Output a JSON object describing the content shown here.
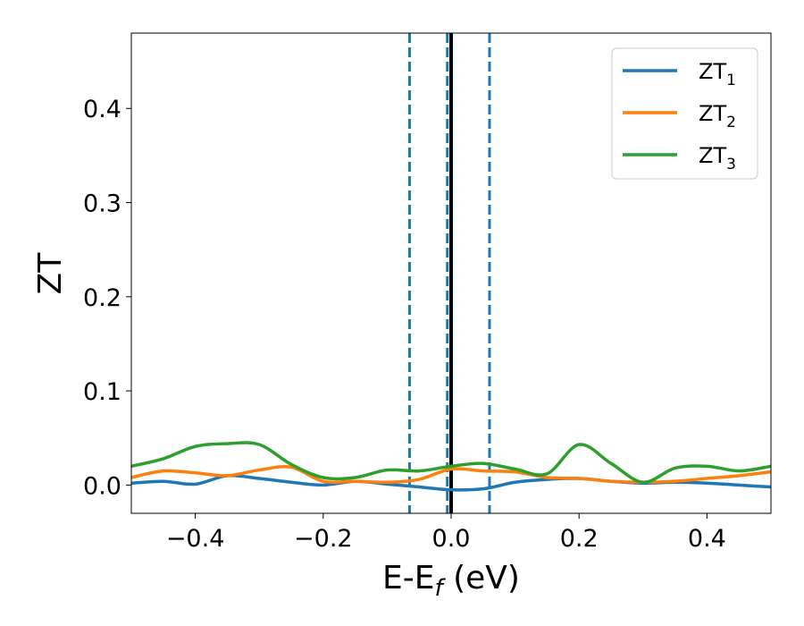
{
  "chart_data": {
    "type": "line",
    "xlabel": "E-E",
    "xlabel_sub": "f",
    "xlabel_unit": " (eV)",
    "ylabel": "ZT",
    "xlim": [
      -0.5,
      0.5
    ],
    "ylim": [
      -0.03,
      0.48
    ],
    "xticks": [
      -0.4,
      -0.2,
      0.0,
      0.2,
      0.4
    ],
    "xtick_labels": [
      "−0.4",
      "−0.2",
      "0.0",
      "0.2",
      "0.4"
    ],
    "yticks": [
      0.0,
      0.1,
      0.2,
      0.3,
      0.4
    ],
    "ytick_labels": [
      "0.0",
      "0.1",
      "0.2",
      "0.3",
      "0.4"
    ],
    "legend": {
      "location": "top-right"
    },
    "vlines": [
      {
        "x": -0.065,
        "style": "dashed",
        "color": "#1f77b4"
      },
      {
        "x": -0.006,
        "style": "dashed",
        "color": "#1f77b4"
      },
      {
        "x": 0.06,
        "style": "dashed",
        "color": "#1f77b4"
      },
      {
        "x": 0.0,
        "style": "solid",
        "color": "#000000"
      }
    ],
    "x": [
      -0.5,
      -0.45,
      -0.4,
      -0.35,
      -0.3,
      -0.25,
      -0.2,
      -0.15,
      -0.1,
      -0.05,
      0.0,
      0.05,
      0.1,
      0.15,
      0.2,
      0.25,
      0.3,
      0.35,
      0.4,
      0.45,
      0.5
    ],
    "series": [
      {
        "name": "ZT",
        "name_sub": "1",
        "color": "#1f77b4",
        "values": [
          0.002,
          0.004,
          0.001,
          0.01,
          0.007,
          0.003,
          0.0,
          0.004,
          0.001,
          -0.002,
          -0.005,
          -0.004,
          0.003,
          0.006,
          0.007,
          0.004,
          0.002,
          0.003,
          0.002,
          0.0,
          -0.002
        ]
      },
      {
        "name": "ZT",
        "name_sub": "2",
        "color": "#ff7f0e",
        "values": [
          0.008,
          0.015,
          0.013,
          0.01,
          0.016,
          0.019,
          0.004,
          0.004,
          0.003,
          0.006,
          0.017,
          0.015,
          0.014,
          0.008,
          0.007,
          0.004,
          0.003,
          0.004,
          0.007,
          0.01,
          0.014
        ]
      },
      {
        "name": "ZT",
        "name_sub": "3",
        "color": "#2ca02c",
        "values": [
          0.02,
          0.028,
          0.041,
          0.044,
          0.043,
          0.022,
          0.008,
          0.008,
          0.016,
          0.015,
          0.02,
          0.023,
          0.017,
          0.012,
          0.043,
          0.023,
          0.003,
          0.018,
          0.02,
          0.015,
          0.02
        ]
      }
    ]
  }
}
